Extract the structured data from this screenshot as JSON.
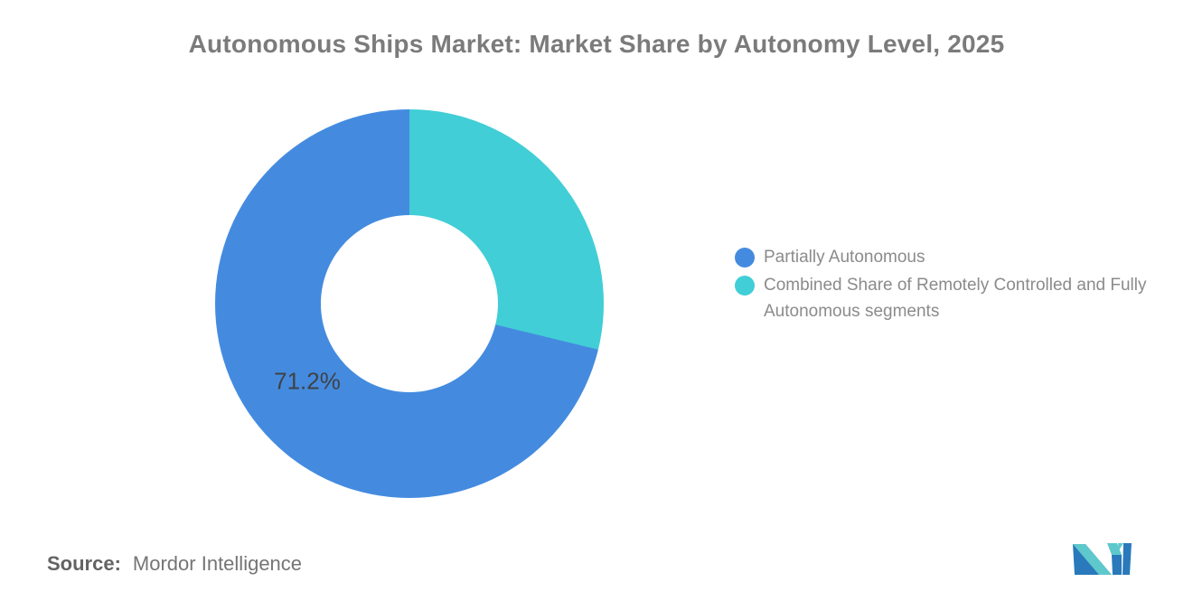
{
  "title": "Autonomous Ships Market: Market Share by Autonomy Level, 2025",
  "chart_data": {
    "type": "pie",
    "subtype": "donut",
    "title": "Autonomous Ships Market: Market Share by Autonomy Level, 2025",
    "categories": [
      "Partially Autonomous",
      "Combined Share of Remotely Controlled and Fully Autonomous segments"
    ],
    "values": [
      71.2,
      28.8
    ],
    "colors": [
      "#448BE0",
      "#41CED6"
    ],
    "visible_label": "71.2%",
    "hole_ratio": 0.456,
    "start_angle_deg": 0,
    "draw_order": [
      1,
      0
    ],
    "legend_position": "right"
  },
  "legend": {
    "items": [
      {
        "label": "Partially Autonomous",
        "color": "#448BE0"
      },
      {
        "label": "Combined Share of Remotely Controlled and Fully Autonomous segments",
        "color": "#41CED6"
      }
    ]
  },
  "source": {
    "prefix": "Source:",
    "name": "Mordor Intelligence"
  },
  "logo": {
    "alt": "Mordor Intelligence logo",
    "blue": "#2A79BB",
    "teal": "#5EC8CC"
  }
}
